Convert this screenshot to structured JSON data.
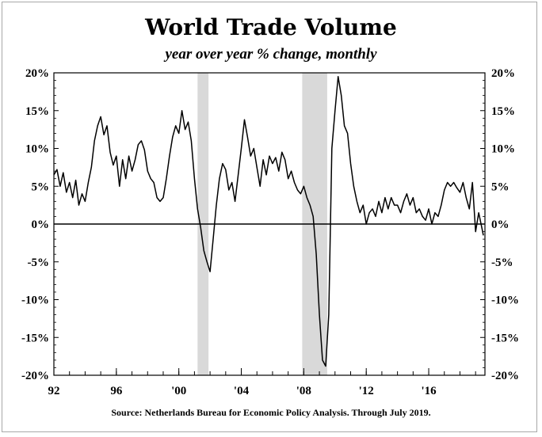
{
  "chart_data": {
    "type": "line",
    "title": "World Trade Volume",
    "subtitle": "year over year % change, monthly",
    "source": "Source: Netherlands Bureau for Economic Policy Analysis. Through July 2019.",
    "xlabel": "",
    "ylabel": "",
    "xlim": [
      1992,
      2019.6
    ],
    "ylim": [
      -20,
      20
    ],
    "x_ticks": [
      {
        "value": 1992,
        "label": "92"
      },
      {
        "value": 1996,
        "label": "96"
      },
      {
        "value": 2000,
        "label": "'00"
      },
      {
        "value": 2004,
        "label": "'04"
      },
      {
        "value": 2008,
        "label": "'08"
      },
      {
        "value": 2012,
        "label": "'12"
      },
      {
        "value": 2016,
        "label": "'16"
      }
    ],
    "y_ticks": [
      {
        "value": 20,
        "label": "20%"
      },
      {
        "value": 15,
        "label": "15%"
      },
      {
        "value": 10,
        "label": "10%"
      },
      {
        "value": 5,
        "label": "5%"
      },
      {
        "value": 0,
        "label": "0%"
      },
      {
        "value": -5,
        "label": "-5%"
      },
      {
        "value": -10,
        "label": "-10%"
      },
      {
        "value": -15,
        "label": "-15%"
      },
      {
        "value": -20,
        "label": "-20%"
      }
    ],
    "recessions": [
      [
        2001.2,
        2001.9
      ],
      [
        2007.9,
        2009.5
      ]
    ],
    "grid": false,
    "zero_line": true,
    "colors": {
      "line": "#000000",
      "recession": "#d9d9d9",
      "axis": "#000000"
    },
    "series": [
      {
        "x": [
          1992.0,
          1992.2,
          1992.4,
          1992.6,
          1992.8,
          1993.0,
          1993.2,
          1993.4,
          1993.6,
          1993.8,
          1994.0,
          1994.2,
          1994.4,
          1994.6,
          1994.8,
          1995.0,
          1995.2,
          1995.4,
          1995.6,
          1995.8,
          1996.0,
          1996.2,
          1996.4,
          1996.6,
          1996.8,
          1997.0,
          1997.2,
          1997.4,
          1997.6,
          1997.8,
          1998.0,
          1998.2,
          1998.4,
          1998.6,
          1998.8,
          1999.0,
          1999.2,
          1999.4,
          1999.6,
          1999.8,
          2000.0,
          2000.2,
          2000.4,
          2000.6,
          2000.8,
          2001.0,
          2001.2,
          2001.4,
          2001.6,
          2001.8,
          2002.0,
          2002.2,
          2002.4,
          2002.6,
          2002.8,
          2003.0,
          2003.2,
          2003.4,
          2003.6,
          2003.8,
          2004.0,
          2004.2,
          2004.4,
          2004.6,
          2004.8,
          2005.0,
          2005.2,
          2005.4,
          2005.6,
          2005.8,
          2006.0,
          2006.2,
          2006.4,
          2006.6,
          2006.8,
          2007.0,
          2007.2,
          2007.4,
          2007.6,
          2007.8,
          2008.0,
          2008.2,
          2008.4,
          2008.6,
          2008.8,
          2009.0,
          2009.2,
          2009.4,
          2009.6,
          2009.8,
          2010.0,
          2010.2,
          2010.4,
          2010.6,
          2010.8,
          2011.0,
          2011.2,
          2011.4,
          2011.6,
          2011.8,
          2012.0,
          2012.2,
          2012.4,
          2012.6,
          2012.8,
          2013.0,
          2013.2,
          2013.4,
          2013.6,
          2013.8,
          2014.0,
          2014.2,
          2014.4,
          2014.6,
          2014.8,
          2015.0,
          2015.2,
          2015.4,
          2015.6,
          2015.8,
          2016.0,
          2016.2,
          2016.4,
          2016.6,
          2016.8,
          2017.0,
          2017.2,
          2017.4,
          2017.6,
          2017.8,
          2018.0,
          2018.2,
          2018.4,
          2018.6,
          2018.8,
          2019.0,
          2019.2,
          2019.4,
          2019.5
        ],
        "y": [
          6.5,
          7.2,
          5.0,
          6.8,
          4.2,
          5.5,
          3.5,
          5.8,
          2.5,
          4.0,
          3.0,
          5.5,
          7.5,
          11.0,
          13.0,
          14.2,
          11.8,
          13.0,
          9.5,
          7.8,
          9.0,
          5.0,
          8.5,
          6.0,
          9.0,
          7.0,
          8.5,
          10.5,
          11.0,
          9.8,
          7.0,
          6.0,
          5.5,
          3.5,
          3.0,
          3.5,
          6.0,
          9.0,
          11.5,
          13.0,
          12.0,
          15.0,
          12.5,
          13.5,
          11.0,
          6.0,
          2.0,
          -0.5,
          -3.5,
          -5.0,
          -6.3,
          -2.0,
          2.5,
          6.0,
          8.0,
          7.2,
          4.5,
          5.5,
          3.0,
          6.5,
          10.0,
          13.8,
          11.5,
          9.0,
          10.0,
          7.5,
          5.0,
          8.5,
          6.5,
          9.0,
          8.0,
          8.8,
          7.0,
          9.5,
          8.5,
          6.0,
          7.0,
          5.5,
          4.5,
          4.0,
          5.0,
          3.5,
          2.5,
          1.0,
          -4.0,
          -12.0,
          -18.0,
          -18.8,
          -12.0,
          10.0,
          15.0,
          19.5,
          17.0,
          13.0,
          12.0,
          8.0,
          5.0,
          3.0,
          1.5,
          2.5,
          0.0,
          1.5,
          2.0,
          1.0,
          3.0,
          1.5,
          3.5,
          2.0,
          3.5,
          2.5,
          2.5,
          1.5,
          3.0,
          4.0,
          2.5,
          3.5,
          1.5,
          2.0,
          1.0,
          0.5,
          2.0,
          0.0,
          1.5,
          1.0,
          2.5,
          4.5,
          5.5,
          5.0,
          5.5,
          4.8,
          4.2,
          5.5,
          3.5,
          2.0,
          5.5,
          -1.0,
          1.5,
          -0.5,
          -1.5
        ]
      }
    ]
  }
}
